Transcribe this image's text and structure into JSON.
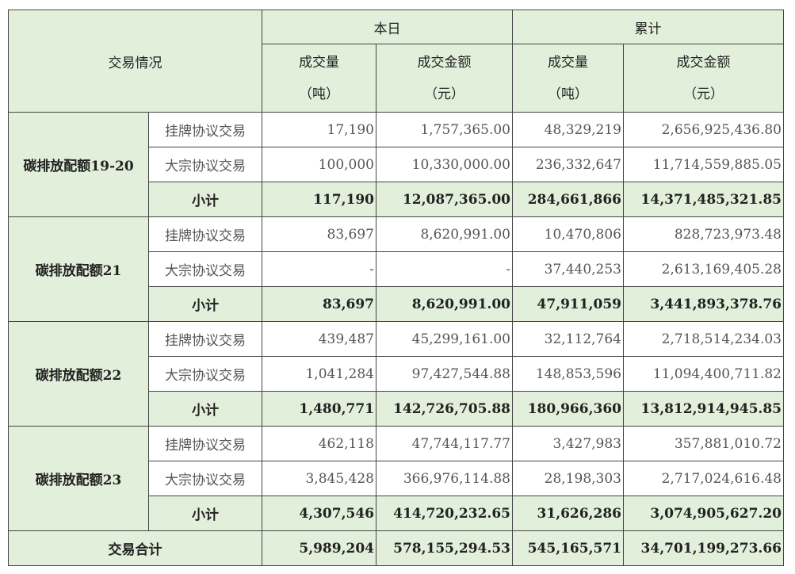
{
  "header": {
    "label": "交易情况",
    "today": "本日",
    "cumulative": "累计",
    "volume": "成交量",
    "volume_unit": "（吨）",
    "amount": "成交金额",
    "amount_unit": "（元）"
  },
  "groups": [
    {
      "name": "碳排放配额19-20",
      "rows": [
        {
          "type": "挂牌协议交易",
          "today_vol": "17,190",
          "today_amt": "1,757,365.00",
          "cum_vol": "48,329,219",
          "cum_amt": "2,656,925,436.80"
        },
        {
          "type": "大宗协议交易",
          "today_vol": "100,000",
          "today_amt": "10,330,000.00",
          "cum_vol": "236,332,647",
          "cum_amt": "11,714,559,885.05"
        },
        {
          "type": "小计",
          "today_vol": "117,190",
          "today_amt": "12,087,365.00",
          "cum_vol": "284,661,866",
          "cum_amt": "14,371,485,321.85"
        }
      ]
    },
    {
      "name": "碳排放配额21",
      "rows": [
        {
          "type": "挂牌协议交易",
          "today_vol": "83,697",
          "today_amt": "8,620,991.00",
          "cum_vol": "10,470,806",
          "cum_amt": "828,723,973.48"
        },
        {
          "type": "大宗协议交易",
          "today_vol": "-",
          "today_amt": "-",
          "cum_vol": "37,440,253",
          "cum_amt": "2,613,169,405.28"
        },
        {
          "type": "小计",
          "today_vol": "83,697",
          "today_amt": "8,620,991.00",
          "cum_vol": "47,911,059",
          "cum_amt": "3,441,893,378.76"
        }
      ]
    },
    {
      "name": "碳排放配额22",
      "rows": [
        {
          "type": "挂牌协议交易",
          "today_vol": "439,487",
          "today_amt": "45,299,161.00",
          "cum_vol": "32,112,764",
          "cum_amt": "2,718,514,234.03"
        },
        {
          "type": "大宗协议交易",
          "today_vol": "1,041,284",
          "today_amt": "97,427,544.88",
          "cum_vol": "148,853,596",
          "cum_amt": "11,094,400,711.82"
        },
        {
          "type": "小计",
          "today_vol": "1,480,771",
          "today_amt": "142,726,705.88",
          "cum_vol": "180,966,360",
          "cum_amt": "13,812,914,945.85"
        }
      ]
    },
    {
      "name": "碳排放配额23",
      "rows": [
        {
          "type": "挂牌协议交易",
          "today_vol": "462,118",
          "today_amt": "47,744,117.77",
          "cum_vol": "3,427,983",
          "cum_amt": "357,881,010.72"
        },
        {
          "type": "大宗协议交易",
          "today_vol": "3,845,428",
          "today_amt": "366,976,114.88",
          "cum_vol": "28,198,303",
          "cum_amt": "2,717,024,616.48"
        },
        {
          "type": "小计",
          "today_vol": "4,307,546",
          "today_amt": "414,720,232.65",
          "cum_vol": "31,626,286",
          "cum_amt": "3,074,905,627.20"
        }
      ]
    }
  ],
  "total": {
    "label": "交易合计",
    "today_vol": "5,989,204",
    "today_amt": "578,155,294.53",
    "cum_vol": "545,165,571",
    "cum_amt": "34,701,199,273.66"
  }
}
